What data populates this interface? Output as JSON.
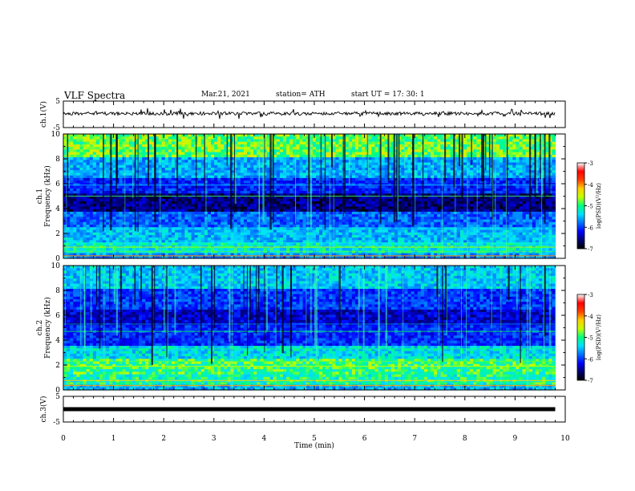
{
  "header": {
    "title": "VLF Spectra",
    "date": "Mar.21, 2021",
    "station": "station= ATH",
    "start": "start  UT =   17: 30: 1"
  },
  "colorbar": {
    "label": "log(PSD)(V²/Hz)",
    "ticks": [
      "-3",
      "-4",
      "-5",
      "-6",
      "-7"
    ],
    "colors": [
      "#000000",
      "#00006e",
      "#0000ff",
      "#0070ff",
      "#00e0ff",
      "#00ff80",
      "#c0ff00",
      "#ffd000",
      "#ff4000",
      "#ff0000",
      "#ffffff"
    ]
  },
  "chart_data": [
    {
      "type": "line",
      "ylabel": "ch.1(V)",
      "ylim": [
        -5,
        5
      ],
      "yticks": [
        "5",
        "-5"
      ],
      "xlim": [
        0,
        10
      ],
      "series_level": 0.3
    },
    {
      "type": "heatmap",
      "ylabel": "ch.1",
      "ylabel2": "Frequency (kHz)",
      "ylim": [
        0,
        10
      ],
      "yticks": [
        "0",
        "2",
        "4",
        "6",
        "8",
        "10"
      ],
      "xlim": [
        0,
        10
      ],
      "log_psd_range": [
        -7,
        -3
      ]
    },
    {
      "type": "heatmap",
      "ylabel": "ch.2",
      "ylabel2": "Frequency (kHz)",
      "ylim": [
        0,
        10
      ],
      "yticks": [
        "0",
        "2",
        "4",
        "6",
        "8",
        "10"
      ],
      "xlim": [
        0,
        10
      ],
      "log_psd_range": [
        -7,
        -3
      ]
    },
    {
      "type": "line",
      "ylabel": "ch.3(V)",
      "ylim": [
        -5,
        5
      ],
      "yticks": [
        "5",
        "-5"
      ],
      "xlim": [
        0,
        10
      ],
      "series_level": 0
    }
  ],
  "xaxis": {
    "label": "Time (min)",
    "ticks": [
      "0",
      "1",
      "2",
      "3",
      "4",
      "5",
      "6",
      "7",
      "8",
      "9",
      "10"
    ],
    "data_end": 9.8
  }
}
